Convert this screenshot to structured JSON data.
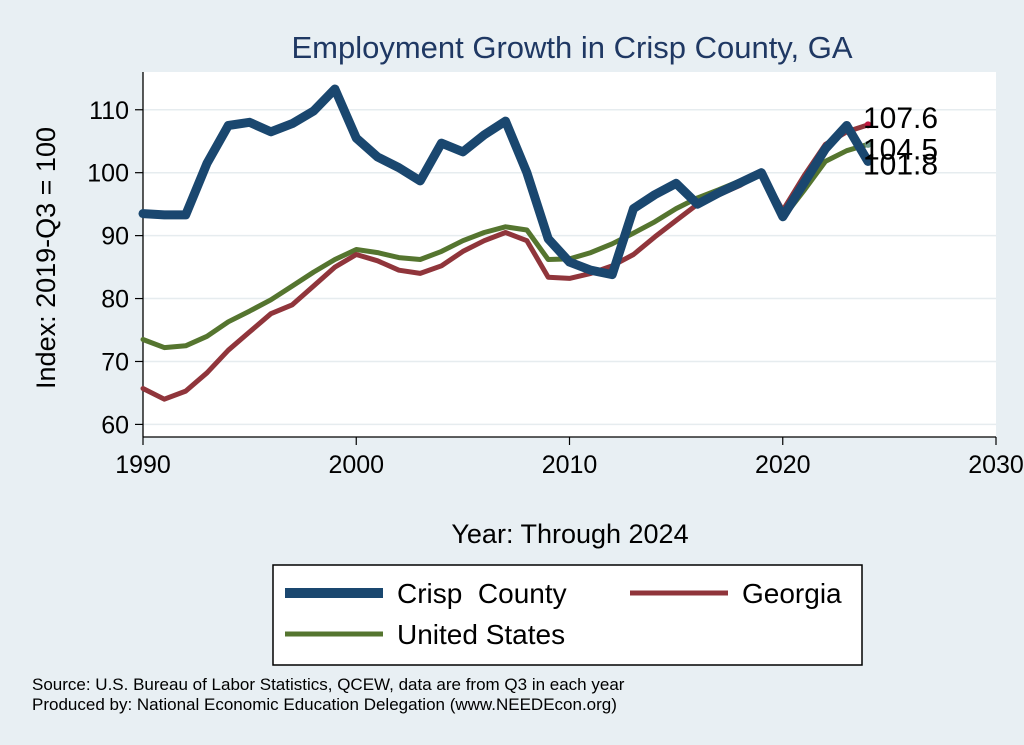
{
  "chart_data": {
    "type": "line",
    "title": "Employment Growth in Crisp County, GA",
    "xlabel": "Year: Through 2024",
    "ylabel": "Index: 2019-Q3 = 100",
    "xlim": [
      1990,
      2030
    ],
    "ylim": [
      58,
      116
    ],
    "xticks": [
      1990,
      2000,
      2010,
      2020,
      2030
    ],
    "yticks": [
      60,
      70,
      80,
      90,
      100,
      110
    ],
    "x": [
      1990,
      1991,
      1992,
      1993,
      1994,
      1995,
      1996,
      1997,
      1998,
      1999,
      2000,
      2001,
      2002,
      2003,
      2004,
      2005,
      2006,
      2007,
      2008,
      2009,
      2010,
      2011,
      2012,
      2013,
      2014,
      2015,
      2016,
      2017,
      2018,
      2019,
      2020,
      2021,
      2022,
      2023,
      2024
    ],
    "series": [
      {
        "name": "Crisp  County",
        "color": "#1a476f",
        "values": [
          93.5,
          93.3,
          93.3,
          101.5,
          107.5,
          108.0,
          106.5,
          107.8,
          109.8,
          113.3,
          105.5,
          102.5,
          100.8,
          98.7,
          104.7,
          103.3,
          106.0,
          108.2,
          100.0,
          89.5,
          85.8,
          84.5,
          83.8,
          94.3,
          96.5,
          98.3,
          95.0,
          96.8,
          98.4,
          100.0,
          93.0,
          98.4,
          103.8,
          107.5,
          101.8
        ]
      },
      {
        "name": "Georgia",
        "color": "#90353b",
        "values": [
          65.7,
          64.0,
          65.3,
          68.2,
          71.8,
          74.7,
          77.6,
          79.0,
          82.0,
          85.0,
          87.0,
          86.0,
          84.5,
          84.0,
          85.2,
          87.5,
          89.2,
          90.5,
          89.2,
          83.4,
          83.2,
          84.0,
          85.2,
          87.0,
          89.8,
          92.4,
          95.0,
          96.5,
          98.0,
          100.0,
          94.0,
          99.5,
          104.5,
          106.5,
          107.6
        ]
      },
      {
        "name": "United States",
        "color": "#55752f",
        "values": [
          73.5,
          72.2,
          72.5,
          74.0,
          76.3,
          78.0,
          79.8,
          82.0,
          84.2,
          86.2,
          87.8,
          87.3,
          86.5,
          86.2,
          87.5,
          89.2,
          90.5,
          91.4,
          90.9,
          86.2,
          86.3,
          87.3,
          88.7,
          90.4,
          92.2,
          94.3,
          96.0,
          97.3,
          98.7,
          100.0,
          92.8,
          97.2,
          101.8,
          103.5,
          104.5
        ]
      }
    ],
    "end_labels": [
      "107.6",
      "104.5",
      "101.8"
    ],
    "legend": "bottom",
    "grid": true
  },
  "footer": {
    "source": "Source: U.S. Bureau of Labor Statistics, QCEW, data are from Q3 in each year",
    "produced": "Produced by: National Economic Education Delegation (www.NEEDEcon.org)"
  }
}
